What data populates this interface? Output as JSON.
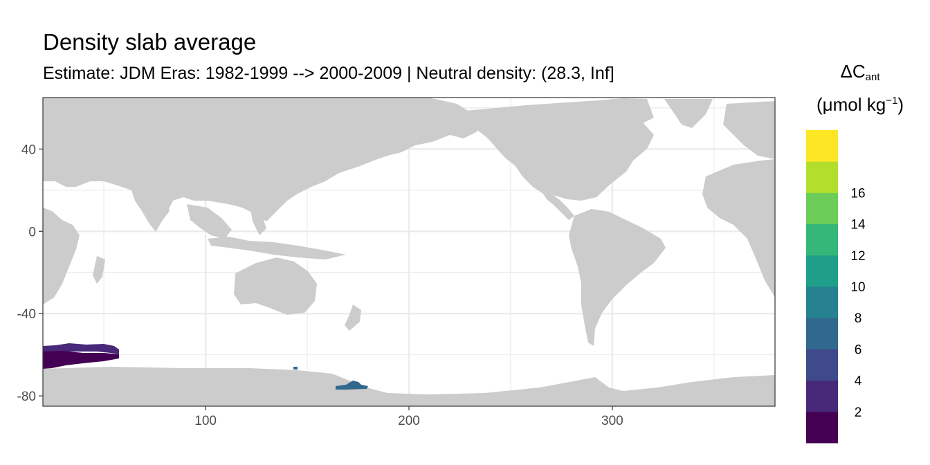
{
  "title": "Density slab average",
  "subtitle": "Estimate: JDM Eras: 1982-1999 --> 2000-2009 | Neutral density: (28.3, Inf]",
  "legend": {
    "title_main": "ΔC",
    "title_sub": "ant",
    "unit_prefix": "(μmol kg",
    "unit_sup": "−1",
    "unit_suffix": ")",
    "colors": [
      "#440154",
      "#482878",
      "#3e4a89",
      "#31688e",
      "#26828e",
      "#1f9e89",
      "#35b779",
      "#6dcd59",
      "#b4de2c",
      "#fde725"
    ],
    "labels": [
      "2",
      "4",
      "6",
      "8",
      "10",
      "12",
      "14",
      "16"
    ]
  },
  "axes": {
    "x_ticks": [
      100,
      200,
      300
    ],
    "y_ticks": [
      40,
      0,
      -40,
      -80
    ],
    "x_range": [
      20,
      380
    ],
    "y_range": [
      -85,
      65
    ]
  },
  "colors": {
    "land": "#cccccc",
    "grid": "#ebebeb",
    "panel_border": "#333333"
  },
  "data_regions": [
    {
      "name": "atlantic-indian-sector",
      "lon_range": [
        20,
        58
      ],
      "lat_range": [
        -66,
        -54
      ],
      "value_band": "0-4"
    },
    {
      "name": "ross-sea",
      "lon_range": [
        165,
        180
      ],
      "lat_range": [
        -77,
        -72
      ],
      "value_band": "6-8"
    },
    {
      "name": "wilkes-margin",
      "lon_range": [
        144,
        146
      ],
      "lat_range": [
        -67,
        -65
      ],
      "value_band": "6-8"
    }
  ]
}
